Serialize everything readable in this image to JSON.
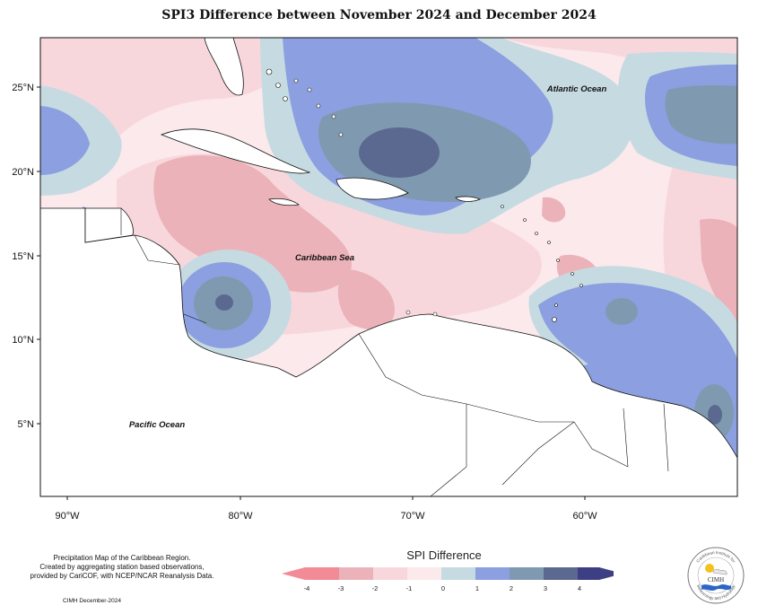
{
  "title": "SPI3 Difference between November 2024 and December 2024",
  "axes": {
    "lat_labels": [
      "25°N",
      "20°N",
      "15°N",
      "10°N",
      "5°N"
    ],
    "lon_labels": [
      "90°W",
      "80°W",
      "70°W",
      "60°W"
    ]
  },
  "places": {
    "atlantic": "Atlantic Ocean",
    "caribbean": "Caribbean Sea",
    "pacific": "Pacific Ocean"
  },
  "credits": [
    "Precipitation Map of the Caribbean Region.",
    "Created by aggregating station based observations,",
    "provided by CariCOF, with NCEP/NCAR Reanalysis Data."
  ],
  "cimh_date": "CIMH December-2024",
  "legend": {
    "title": "SPI Difference",
    "ticks": [
      "-4",
      "-3",
      "-2",
      "-1",
      "0",
      "1",
      "2",
      "3",
      "4"
    ],
    "colors": [
      "#f28b96",
      "#ebb3b9",
      "#f8d7dc",
      "#fbe9ec",
      "#c6dbe1",
      "#8c9fe0",
      "#7f9ab0",
      "#5b6990",
      "#3d3f85"
    ]
  },
  "logo": {
    "top_text": "Caribbean Institute for",
    "label": "CIMH",
    "bottom_text": "Meteorology and Hydrology"
  }
}
